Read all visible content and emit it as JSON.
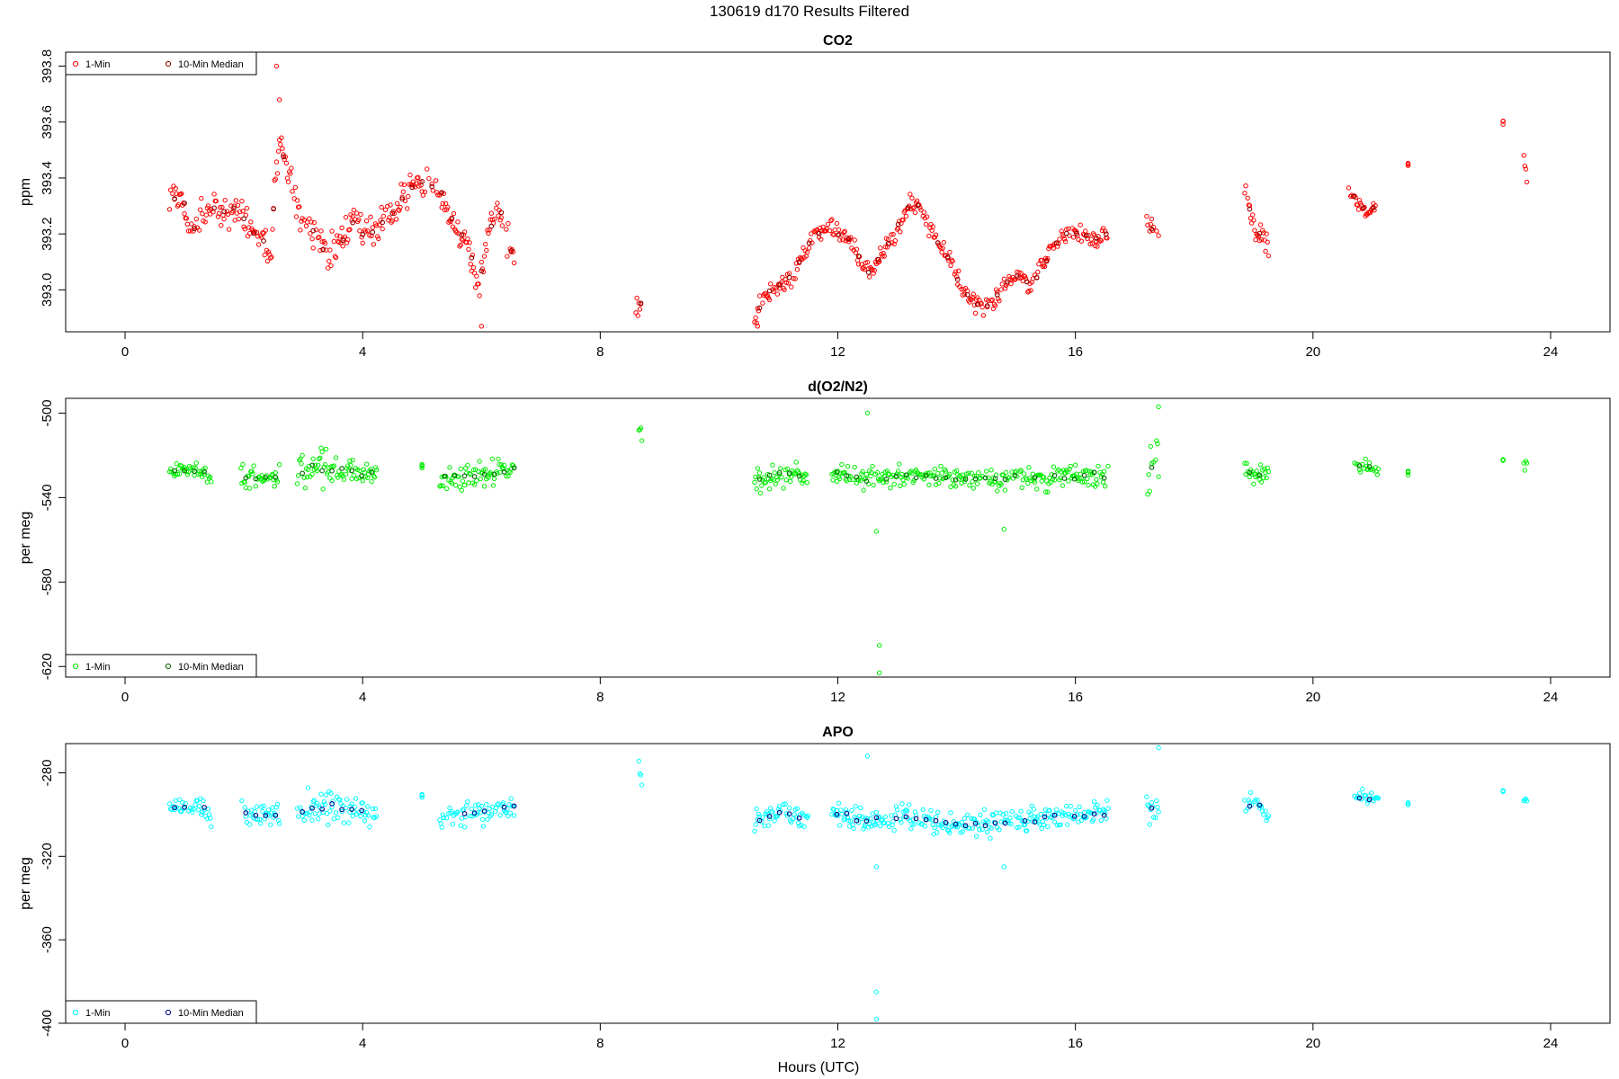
{
  "figure": {
    "title": "130619   d170   Results Filtered",
    "xlabel": "Hours (UTC)"
  },
  "chart_data": [
    {
      "type": "scatter",
      "title": "CO2",
      "ylabel": "ppm",
      "xlim": [
        -1,
        25
      ],
      "ylim": [
        392.85,
        393.85
      ],
      "xticks": [
        0,
        4,
        8,
        12,
        16,
        20,
        24
      ],
      "yticks": [
        393.0,
        393.2,
        393.4,
        393.6,
        393.8
      ],
      "ytick_labels": [
        "393.0",
        "393.2",
        "393.4",
        "393.6",
        "393.8"
      ],
      "legend_position": "top-left",
      "colors": {
        "one_min": "#ff0000",
        "median": "#8b0000"
      },
      "series": [
        {
          "name": "1-Min",
          "noise": 0.05,
          "knots": [
            [
              0.75,
              393.35
            ],
            [
              1.0,
              393.3
            ],
            [
              1.05,
              393.23
            ],
            [
              1.15,
              393.22
            ],
            [
              1.4,
              393.3
            ],
            [
              1.5,
              393.28
            ],
            [
              1.95,
              393.28
            ],
            [
              2.1,
              393.22
            ],
            [
              2.3,
              393.18
            ],
            [
              2.45,
              393.12
            ],
            [
              2.55,
              393.45
            ],
            [
              2.65,
              393.5
            ],
            [
              2.9,
              393.3
            ],
            [
              3.1,
              393.22
            ],
            [
              3.4,
              393.13
            ],
            [
              3.6,
              393.16
            ],
            [
              3.85,
              393.25
            ],
            [
              4.05,
              393.18
            ],
            [
              4.25,
              393.22
            ],
            [
              5.0,
              393.4
            ],
            [
              5.3,
              393.35
            ],
            [
              5.5,
              393.25
            ],
            [
              5.8,
              393.15
            ],
            [
              5.95,
              393.0
            ],
            [
              6.1,
              393.2
            ],
            [
              6.3,
              393.3
            ],
            [
              6.55,
              393.1
            ]
          ]
        },
        {
          "name": "",
          "noise": 0.03,
          "knots": [
            [
              8.6,
              392.93
            ],
            [
              8.7,
              392.96
            ]
          ]
        },
        {
          "name": "",
          "noise": 0.03,
          "knots": [
            [
              10.6,
              392.88
            ],
            [
              10.75,
              392.98
            ],
            [
              11.0,
              393.02
            ],
            [
              11.2,
              393.04
            ],
            [
              11.4,
              393.12
            ],
            [
              11.6,
              393.2
            ],
            [
              11.9,
              393.22
            ],
            [
              12.2,
              393.18
            ],
            [
              12.4,
              393.1
            ],
            [
              12.55,
              393.06
            ],
            [
              12.8,
              393.15
            ],
            [
              13.0,
              393.22
            ],
            [
              13.2,
              393.3
            ],
            [
              13.35,
              393.3
            ],
            [
              13.6,
              393.2
            ],
            [
              13.9,
              393.1
            ],
            [
              14.1,
              393.0
            ],
            [
              14.4,
              392.94
            ],
            [
              14.6,
              392.95
            ],
            [
              14.8,
              393.02
            ],
            [
              15.0,
              393.05
            ],
            [
              15.25,
              393.02
            ],
            [
              15.5,
              393.1
            ],
            [
              15.75,
              393.2
            ],
            [
              16.0,
              393.2
            ],
            [
              16.3,
              393.18
            ],
            [
              16.55,
              393.2
            ]
          ]
        },
        {
          "name": "",
          "noise": 0.04,
          "knots": [
            [
              17.2,
              393.23
            ],
            [
              17.4,
              393.22
            ]
          ]
        },
        {
          "name": "",
          "noise": 0.04,
          "knots": [
            [
              18.85,
              393.36
            ],
            [
              19.0,
              393.22
            ],
            [
              19.25,
              393.15
            ]
          ]
        },
        {
          "name": "",
          "noise": 0.02,
          "knots": [
            [
              20.6,
              393.35
            ],
            [
              20.9,
              393.28
            ],
            [
              21.1,
              393.3
            ]
          ]
        },
        {
          "name": "",
          "noise": 0.01,
          "knots": [
            [
              21.6,
              393.45
            ]
          ]
        },
        {
          "name": "",
          "noise": 0.01,
          "knots": [
            [
              23.2,
              393.6
            ]
          ]
        },
        {
          "name": "",
          "noise": 0.04,
          "knots": [
            [
              23.55,
              393.46
            ],
            [
              23.6,
              393.42
            ]
          ]
        },
        {
          "name": "10-Min Median"
        }
      ]
    },
    {
      "type": "scatter",
      "title": "d(O2/N2)",
      "ylabel": "per meg",
      "xlim": [
        -1,
        25
      ],
      "ylim": [
        -625,
        -493
      ],
      "xticks": [
        0,
        4,
        8,
        12,
        16,
        20,
        24
      ],
      "yticks": [
        -500,
        -540,
        -580,
        -620
      ],
      "ytick_labels": [
        "-500",
        "-540",
        "-580",
        "-620"
      ],
      "legend_position": "bottom-left",
      "colors": {
        "one_min": "#00ee00",
        "median": "#006400"
      },
      "series": [
        {
          "name": "1-Min",
          "noise": 3.5,
          "knots": [
            [
              0.75,
              -528
            ],
            [
              1.3,
              -527
            ],
            [
              1.45,
              -532
            ]
          ]
        },
        {
          "name": "",
          "noise": 5,
          "knots": [
            [
              1.95,
              -531
            ],
            [
              2.6,
              -530
            ]
          ]
        },
        {
          "name": "",
          "noise": 7,
          "knots": [
            [
              2.9,
              -528
            ],
            [
              3.5,
              -526
            ],
            [
              4.0,
              -528
            ],
            [
              4.25,
              -530
            ]
          ]
        },
        {
          "name": "",
          "noise": 1,
          "knots": [
            [
              5.0,
              -525
            ]
          ]
        },
        {
          "name": "",
          "noise": 5,
          "knots": [
            [
              5.3,
              -531
            ],
            [
              6.0,
              -529
            ],
            [
              6.55,
              -527
            ]
          ]
        },
        {
          "name": "",
          "noise": 3,
          "knots": [
            [
              8.65,
              -505
            ],
            [
              8.7,
              -510
            ]
          ]
        },
        {
          "name": "",
          "noise": 5,
          "knots": [
            [
              10.6,
              -532
            ],
            [
              11.0,
              -529
            ],
            [
              11.5,
              -531
            ]
          ]
        },
        {
          "name": "",
          "noise": 5,
          "knots": [
            [
              11.9,
              -528
            ],
            [
              12.5,
              -532
            ],
            [
              13.2,
              -530
            ],
            [
              14.0,
              -531
            ],
            [
              15.0,
              -531
            ],
            [
              16.0,
              -530
            ],
            [
              16.55,
              -529
            ]
          ]
        },
        {
          "name": "",
          "noise": 10,
          "knots": [
            [
              17.2,
              -525
            ],
            [
              17.4,
              -523
            ]
          ]
        },
        {
          "name": "",
          "noise": 5,
          "knots": [
            [
              18.85,
              -528
            ],
            [
              19.25,
              -530
            ]
          ]
        },
        {
          "name": "",
          "noise": 3,
          "knots": [
            [
              20.7,
              -524
            ],
            [
              21.1,
              -526
            ]
          ]
        },
        {
          "name": "",
          "noise": 1,
          "knots": [
            [
              21.6,
              -528
            ]
          ]
        },
        {
          "name": "",
          "noise": 1,
          "knots": [
            [
              23.2,
              -523
            ]
          ]
        },
        {
          "name": "",
          "noise": 3,
          "knots": [
            [
              23.55,
              -525
            ],
            [
              23.6,
              -525
            ]
          ]
        },
        {
          "name": "10-Min Median"
        }
      ]
    },
    {
      "type": "scatter",
      "title": "APO",
      "ylabel": "per meg",
      "xlim": [
        -1,
        25
      ],
      "ylim": [
        -400,
        -266
      ],
      "xticks": [
        0,
        4,
        8,
        12,
        16,
        20,
        24
      ],
      "yticks": [
        -280,
        -320,
        -360,
        -400
      ],
      "ytick_labels": [
        "-280",
        "-320",
        "-360",
        "-400"
      ],
      "legend_position": "bottom-left",
      "colors": {
        "one_min": "#00ffff",
        "median": "#00008b"
      },
      "series": [
        {
          "name": "1-Min",
          "noise": 3.5,
          "knots": [
            [
              0.75,
              -297
            ],
            [
              1.3,
              -296
            ],
            [
              1.45,
              -301
            ]
          ]
        },
        {
          "name": "",
          "noise": 5,
          "knots": [
            [
              1.95,
              -301
            ],
            [
              2.6,
              -300
            ]
          ]
        },
        {
          "name": "",
          "noise": 7,
          "knots": [
            [
              2.9,
              -298
            ],
            [
              3.5,
              -296
            ],
            [
              4.0,
              -299
            ],
            [
              4.25,
              -300
            ]
          ]
        },
        {
          "name": "",
          "noise": 1,
          "knots": [
            [
              5.0,
              -291
            ]
          ]
        },
        {
          "name": "",
          "noise": 5,
          "knots": [
            [
              5.3,
              -301
            ],
            [
              6.0,
              -299
            ],
            [
              6.55,
              -296
            ]
          ]
        },
        {
          "name": "",
          "noise": 3,
          "knots": [
            [
              8.65,
              -278
            ],
            [
              8.7,
              -282
            ]
          ]
        },
        {
          "name": "",
          "noise": 5,
          "knots": [
            [
              10.6,
              -303
            ],
            [
              11.0,
              -299
            ],
            [
              11.5,
              -302
            ]
          ]
        },
        {
          "name": "",
          "noise": 5,
          "knots": [
            [
              11.9,
              -299
            ],
            [
              12.5,
              -303
            ],
            [
              13.2,
              -301
            ],
            [
              14.0,
              -305
            ],
            [
              15.0,
              -303
            ],
            [
              16.0,
              -300
            ],
            [
              16.55,
              -300
            ]
          ]
        },
        {
          "name": "",
          "noise": 10,
          "knots": [
            [
              17.2,
              -297
            ],
            [
              17.4,
              -295
            ]
          ]
        },
        {
          "name": "",
          "noise": 5,
          "knots": [
            [
              18.85,
              -295
            ],
            [
              19.25,
              -298
            ]
          ]
        },
        {
          "name": "",
          "noise": 3,
          "knots": [
            [
              20.7,
              -291
            ],
            [
              21.1,
              -293
            ]
          ]
        },
        {
          "name": "",
          "noise": 1,
          "knots": [
            [
              21.6,
              -295
            ]
          ]
        },
        {
          "name": "",
          "noise": 1,
          "knots": [
            [
              23.2,
              -289
            ]
          ]
        },
        {
          "name": "",
          "noise": 3,
          "knots": [
            [
              23.55,
              -292
            ],
            [
              23.6,
              -292
            ]
          ]
        },
        {
          "name": "10-Min Median"
        }
      ]
    }
  ]
}
